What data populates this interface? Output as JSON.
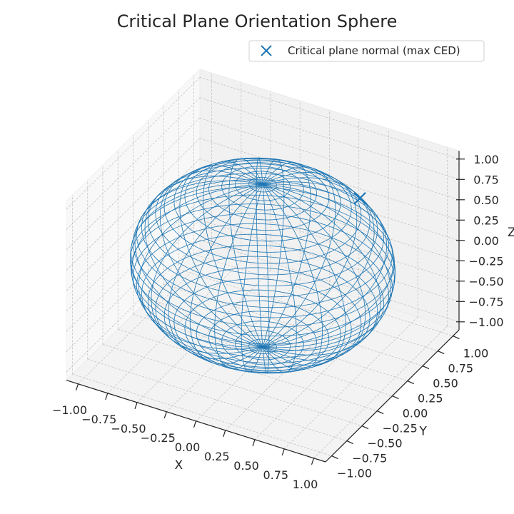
{
  "chart_data": {
    "type": "scatter3d",
    "title": "Critical Plane Orientation Sphere",
    "xlabel": "X",
    "ylabel": "Y",
    "zlabel": "Z",
    "xlim": [
      -1.1,
      1.1
    ],
    "ylim": [
      -1.1,
      1.1
    ],
    "zlim": [
      -1.1,
      1.1
    ],
    "xticks": [
      "−1.00",
      "−0.75",
      "−0.50",
      "−0.25",
      "0.00",
      "0.25",
      "0.50",
      "0.75",
      "1.00"
    ],
    "yticks": [
      "−1.00",
      "−0.75",
      "−0.50",
      "−0.25",
      "0.00",
      "0.25",
      "0.50",
      "0.75",
      "1.00"
    ],
    "zticks": [
      "−1.00",
      "−0.75",
      "−0.50",
      "−0.25",
      "0.00",
      "0.25",
      "0.50",
      "0.75",
      "1.00"
    ],
    "tick_values": [
      -1,
      -0.75,
      -0.5,
      -0.25,
      0,
      0.25,
      0.5,
      0.75,
      1
    ],
    "grid": true,
    "wireframe": {
      "shape": "unit sphere",
      "radius": 1,
      "meridians": 30,
      "parallels": 30,
      "color": "#1f77b4"
    },
    "series": [
      {
        "name": "Critical plane normal (max CED)",
        "marker": "x",
        "color": "#1f77b4",
        "points": [
          [
            0.5,
            0.63,
            0.59
          ]
        ]
      }
    ],
    "legend": {
      "placement": "top-right",
      "entries": [
        "Critical plane normal (max CED)"
      ]
    }
  }
}
